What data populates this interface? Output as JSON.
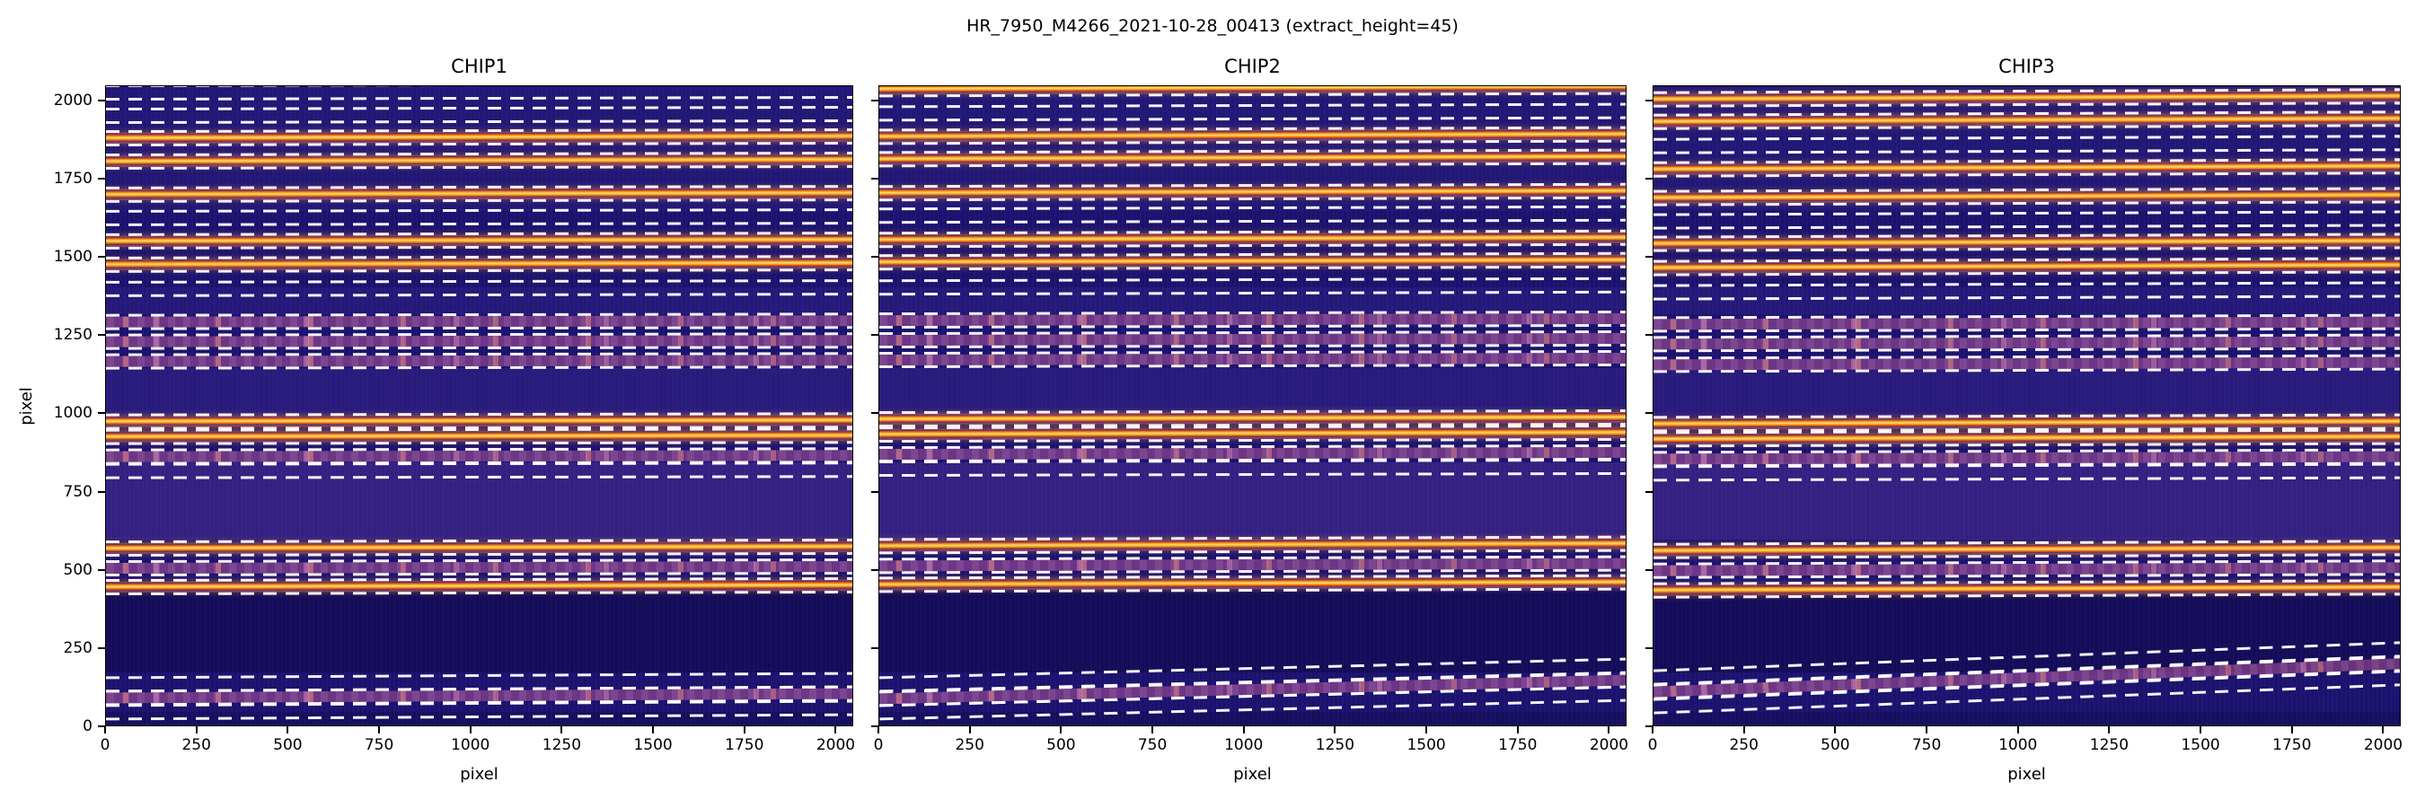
{
  "figure": {
    "suptitle": "HR_7950_M4266_2021-10-28_00413  (extract_height=45)"
  },
  "chart_data": {
    "type": "heatmap",
    "title": "HR_7950_M4266_2021-10-28_00413  (extract_height=45)",
    "extract_height": 45,
    "xlabel": "pixel",
    "ylabel": "pixel",
    "xlim": [
      0,
      2048
    ],
    "ylim": [
      0,
      2048
    ],
    "xticks": [
      0,
      250,
      500,
      750,
      1000,
      1250,
      1500,
      1750,
      2000
    ],
    "yticks": [
      0,
      250,
      500,
      750,
      1000,
      1250,
      1500,
      1750,
      2000
    ],
    "legend": "none",
    "grid": false,
    "colors": {
      "background": "#1c1270",
      "trace": "#f59b23",
      "trace_core": "#ffe066",
      "trace_edge": "#b23c28",
      "band_faint": "rgba(168,91,159,0.55)",
      "band_bright": "rgba(150,70,140,0.40)",
      "dashed": "#ffffff",
      "axes": "#000000"
    },
    "bg_bands": [
      {
        "y0": 600,
        "y1": 845,
        "color": "rgba(108,66,176,0.30)"
      },
      {
        "y0": 995,
        "y1": 1148,
        "color": "rgba(86,60,172,0.22)"
      },
      {
        "y0": 1320,
        "y1": 1405,
        "color": "rgba(76,56,164,0.18)"
      },
      {
        "y0": 1650,
        "y1": 2048,
        "color": "rgba(70,58,166,0.14)"
      },
      {
        "y0": 175,
        "y1": 432,
        "color": "rgba(8,4,48,0.35)"
      },
      {
        "y0": 0,
        "y1": 50,
        "color": "rgba(8,4,48,0.25)"
      }
    ],
    "panels": [
      {
        "title": "CHIP1",
        "orders": [
          {
            "y": 2032,
            "style": "empty",
            "slope": 6
          },
          {
            "y": 1958,
            "style": "empty",
            "slope": 6
          },
          {
            "y": 1884,
            "style": "bright",
            "slope": 6
          },
          {
            "y": 1810,
            "style": "bright",
            "slope": 6
          },
          {
            "y": 1703,
            "style": "bright",
            "slope": 5
          },
          {
            "y": 1630,
            "style": "empty",
            "slope": 5
          },
          {
            "y": 1554,
            "style": "bright",
            "slope": 5
          },
          {
            "y": 1480,
            "style": "bright",
            "slope": 5
          },
          {
            "y": 1402,
            "style": "empty",
            "slope": 5
          },
          {
            "y": 1297,
            "style": "faint",
            "slope": 4
          },
          {
            "y": 1234,
            "style": "faint",
            "slope": 4
          },
          {
            "y": 1170,
            "style": "faint",
            "slope": 4
          },
          {
            "y": 978,
            "style": "bright",
            "slope": 4
          },
          {
            "y": 930,
            "style": "bright",
            "slope": 4
          },
          {
            "y": 868,
            "style": "faint",
            "slope": 4
          },
          {
            "y": 820,
            "style": "empty",
            "slope": 4
          },
          {
            "y": 575,
            "style": "bright",
            "slope": 6
          },
          {
            "y": 512,
            "style": "faint",
            "slope": 6
          },
          {
            "y": 450,
            "style": "bright",
            "slope": 6
          },
          {
            "y": 145,
            "style": "empty",
            "slope": 14
          },
          {
            "y": 100,
            "style": "faint",
            "slope": 14
          },
          {
            "y": 56,
            "style": "empty",
            "slope": 14
          }
        ]
      },
      {
        "title": "CHIP2",
        "orders": [
          {
            "y": 2042,
            "style": "bright",
            "slope": 8
          },
          {
            "y": 1966,
            "style": "empty",
            "slope": 8
          },
          {
            "y": 1892,
            "style": "bright",
            "slope": 8
          },
          {
            "y": 1818,
            "style": "bright",
            "slope": 8
          },
          {
            "y": 1711,
            "style": "bright",
            "slope": 7
          },
          {
            "y": 1638,
            "style": "empty",
            "slope": 7
          },
          {
            "y": 1562,
            "style": "bright",
            "slope": 7
          },
          {
            "y": 1488,
            "style": "bright",
            "slope": 7
          },
          {
            "y": 1410,
            "style": "empty",
            "slope": 7
          },
          {
            "y": 1303,
            "style": "faint",
            "slope": 6
          },
          {
            "y": 1240,
            "style": "faint",
            "slope": 6
          },
          {
            "y": 1176,
            "style": "faint",
            "slope": 6
          },
          {
            "y": 986,
            "style": "bright",
            "slope": 6
          },
          {
            "y": 938,
            "style": "bright",
            "slope": 6
          },
          {
            "y": 876,
            "style": "faint",
            "slope": 6
          },
          {
            "y": 828,
            "style": "empty",
            "slope": 6
          },
          {
            "y": 583,
            "style": "bright",
            "slope": 8
          },
          {
            "y": 520,
            "style": "faint",
            "slope": 8
          },
          {
            "y": 458,
            "style": "bright",
            "slope": 8
          },
          {
            "y": 168,
            "style": "empty",
            "slope": 60
          },
          {
            "y": 122,
            "style": "faint",
            "slope": 60
          },
          {
            "y": 78,
            "style": "empty",
            "slope": 60
          }
        ]
      },
      {
        "title": "CHIP3",
        "orders": [
          {
            "y": 2012,
            "style": "bright",
            "slope": 10
          },
          {
            "y": 1940,
            "style": "bright",
            "slope": 10
          },
          {
            "y": 1862,
            "style": "empty",
            "slope": 10
          },
          {
            "y": 1788,
            "style": "bright",
            "slope": 10
          },
          {
            "y": 1695,
            "style": "bright",
            "slope": 9
          },
          {
            "y": 1622,
            "style": "empty",
            "slope": 9
          },
          {
            "y": 1548,
            "style": "bright",
            "slope": 9
          },
          {
            "y": 1472,
            "style": "bright",
            "slope": 9
          },
          {
            "y": 1395,
            "style": "empty",
            "slope": 9
          },
          {
            "y": 1290,
            "style": "faint",
            "slope": 8
          },
          {
            "y": 1227,
            "style": "faint",
            "slope": 8
          },
          {
            "y": 1163,
            "style": "faint",
            "slope": 8
          },
          {
            "y": 972,
            "style": "bright",
            "slope": 8
          },
          {
            "y": 924,
            "style": "bright",
            "slope": 8
          },
          {
            "y": 862,
            "style": "faint",
            "slope": 8
          },
          {
            "y": 814,
            "style": "empty",
            "slope": 8
          },
          {
            "y": 568,
            "style": "bright",
            "slope": 10
          },
          {
            "y": 505,
            "style": "faint",
            "slope": 10
          },
          {
            "y": 443,
            "style": "bright",
            "slope": 10
          },
          {
            "y": 205,
            "style": "empty",
            "slope": 90
          },
          {
            "y": 158,
            "style": "faint",
            "slope": 90
          },
          {
            "y": 112,
            "style": "empty",
            "slope": 90
          }
        ]
      }
    ]
  }
}
